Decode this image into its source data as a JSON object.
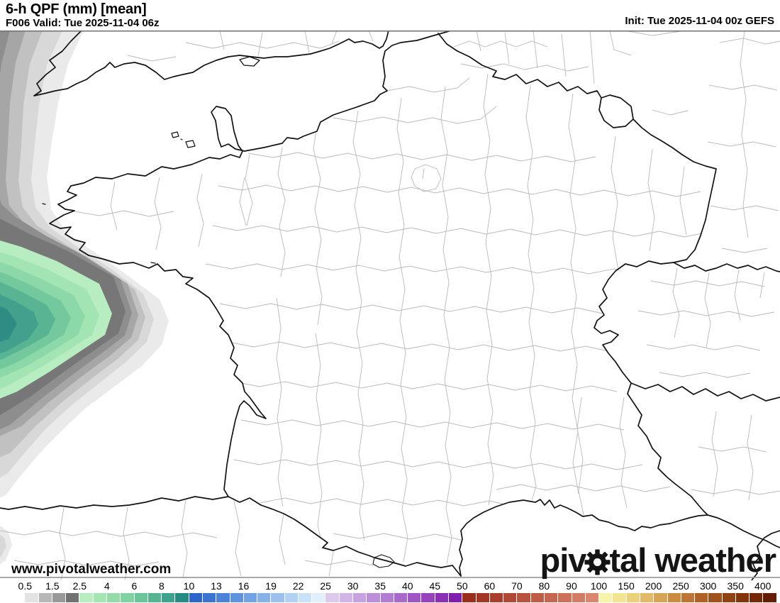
{
  "header": {
    "title": "6-h QPF (mm) [mean]",
    "subtitle": "F006 Valid: Tue 2025-11-04 06z",
    "init": "Init: Tue 2025-11-04 00z GEFS"
  },
  "watermark": {
    "url": "www.pivotalweather.com",
    "logo_left": "piv",
    "logo_right": "tal weather"
  },
  "map": {
    "sea_color": "#ffffff",
    "coast_color": "#111111",
    "department_line_color": "#b9b9b9",
    "frame_color": "#707070",
    "bands": [
      {
        "name": "qpf-trace",
        "color": "#eaeaea"
      },
      {
        "name": "qpf-0.5-1",
        "color": "#d8d8d8"
      },
      {
        "name": "qpf-1-1.5",
        "color": "#c1c1c1"
      },
      {
        "name": "qpf-1.5-2",
        "color": "#a6a6a6"
      },
      {
        "name": "qpf-2-2.5",
        "color": "#8e8e8e"
      },
      {
        "name": "qpf-2.5-3",
        "color": "#777777"
      },
      {
        "name": "qpf-3-4",
        "color": "#b8edc2"
      },
      {
        "name": "qpf-4-5",
        "color": "#a3e4b3"
      },
      {
        "name": "qpf-5-6",
        "color": "#8cd8a8"
      },
      {
        "name": "qpf-6-7",
        "color": "#73c89d"
      },
      {
        "name": "qpf-7-8",
        "color": "#59b493"
      },
      {
        "name": "qpf-8-9",
        "color": "#42a08c"
      },
      {
        "name": "qpf-9-10",
        "color": "#2f8c84"
      }
    ]
  },
  "colorbar": {
    "ticks": [
      "0.5",
      "1.5",
      "2.5",
      "4",
      "6",
      "8",
      "10",
      "13",
      "16",
      "19",
      "22",
      "25",
      "30",
      "35",
      "40",
      "45",
      "50",
      "60",
      "70",
      "80",
      "90",
      "100",
      "150",
      "200",
      "250",
      "300",
      "350",
      "400"
    ],
    "segments": [
      "#ffffff",
      "#e3e3e3",
      "#b7b7b7",
      "#999999",
      "#717171",
      "#b8edc2",
      "#a5e5b4",
      "#93dcaa",
      "#80d2a1",
      "#6bc59b",
      "#55b593",
      "#3fa28c",
      "#288b83",
      "#2b65c9",
      "#3a73d0",
      "#4c83d8",
      "#5f93dd",
      "#72a3e3",
      "#86b2e8",
      "#9bc2ee",
      "#b1d2f2",
      "#c9e2f7",
      "#e0effa",
      "#dcc9ee",
      "#d1b5e7",
      "#c7a2e0",
      "#bd8fd9",
      "#b37cd2",
      "#a969ca",
      "#9f55c3",
      "#9542bc",
      "#8b2fb4",
      "#811cad",
      "#9c2c1c",
      "#a23524",
      "#a93e2d",
      "#b04836",
      "#b7523f",
      "#be5c48",
      "#c56651",
      "#cc705a",
      "#d37b64",
      "#da856d",
      "#f7f3a8",
      "#f2e492",
      "#ecd17c",
      "#e2ba67",
      "#d7a354",
      "#cb8c42",
      "#be7533",
      "#b06226",
      "#a1511b",
      "#924112",
      "#83340b",
      "#742806",
      "#651e03"
    ]
  }
}
